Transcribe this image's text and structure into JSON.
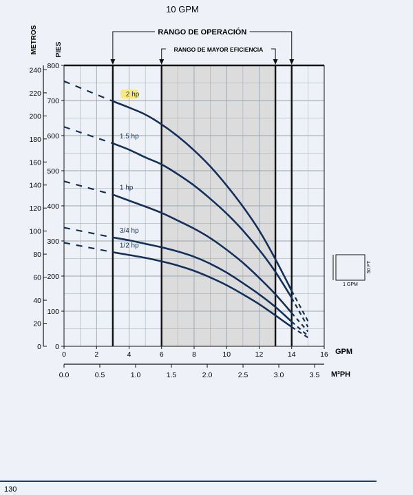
{
  "header": {
    "title": "10 GPM"
  },
  "footer": {
    "page_number": "130"
  },
  "chart_data": {
    "type": "line",
    "title": "10 GPM",
    "x_axis": {
      "label": "GPM",
      "range": [
        0,
        16
      ],
      "ticks": [
        "0",
        "2",
        "4",
        "6",
        "8",
        "10",
        "12",
        "14",
        "16"
      ]
    },
    "x2_axis": {
      "label": "M³PH",
      "ticks": [
        "0.0",
        "0.5",
        "1.0",
        "1.5",
        "2.0",
        "2.5",
        "3.0",
        "3.5"
      ]
    },
    "y_axis": {
      "label": "PIES",
      "range": [
        0,
        800
      ],
      "ticks": [
        "0",
        "100",
        "200",
        "300",
        "400",
        "500",
        "600",
        "700",
        "800"
      ]
    },
    "y2_axis": {
      "label": "METROS",
      "ticks": [
        "0",
        "20",
        "40",
        "60",
        "80",
        "100",
        "120",
        "140",
        "160",
        "180",
        "200",
        "220",
        "240"
      ]
    },
    "operating_range": {
      "label": "RANGO DE OPERACIÓN",
      "x": [
        3,
        14
      ]
    },
    "efficiency_range": {
      "label": "RANGO DE MAYOR EFICIENCIA",
      "x": [
        6,
        13
      ]
    },
    "series": [
      {
        "name": "2 hp",
        "highlight": true,
        "x": [
          3,
          4,
          5,
          6,
          7,
          8,
          9,
          10,
          11,
          12,
          13,
          14
        ],
        "y": [
          698,
          680,
          660,
          632,
          598,
          558,
          512,
          458,
          398,
          330,
          248,
          158
        ],
        "dash_left": [
          [
            0,
            755
          ],
          [
            3,
            698
          ]
        ],
        "dash_right": [
          [
            14,
            158
          ],
          [
            15,
            72
          ]
        ]
      },
      {
        "name": "1.5 hp",
        "x": [
          3,
          4,
          5,
          6,
          7,
          8,
          9,
          10,
          11,
          12,
          13,
          14
        ],
        "y": [
          578,
          560,
          538,
          518,
          490,
          458,
          420,
          378,
          330,
          275,
          212,
          138
        ],
        "dash_left": [
          [
            0,
            625
          ],
          [
            3,
            578
          ]
        ],
        "dash_right": [
          [
            14,
            138
          ],
          [
            15,
            55
          ]
        ]
      },
      {
        "name": "1 hp",
        "x": [
          3,
          4,
          5,
          6,
          7,
          8,
          9,
          10,
          11,
          12,
          13,
          14
        ],
        "y": [
          432,
          415,
          398,
          380,
          358,
          335,
          308,
          275,
          238,
          195,
          148,
          95
        ],
        "dash_left": [
          [
            0,
            470
          ],
          [
            3,
            432
          ]
        ],
        "dash_right": [
          [
            14,
            95
          ],
          [
            15,
            42
          ]
        ]
      },
      {
        "name": "3/4 hp",
        "x": [
          3,
          4,
          5,
          6,
          7,
          8,
          9,
          10,
          11,
          12,
          13,
          14
        ],
        "y": [
          310,
          302,
          292,
          282,
          270,
          255,
          235,
          210,
          180,
          148,
          112,
          70
        ],
        "dash_left": [
          [
            0,
            338
          ],
          [
            3,
            310
          ]
        ],
        "dash_right": [
          [
            14,
            70
          ],
          [
            15,
            30
          ]
        ]
      },
      {
        "name": "1/2 hp",
        "x": [
          3,
          4,
          5,
          6,
          7,
          8,
          9,
          10,
          11,
          12,
          13,
          14
        ],
        "y": [
          268,
          260,
          252,
          242,
          230,
          215,
          196,
          174,
          148,
          120,
          88,
          55
        ],
        "dash_left": [
          [
            0,
            295
          ],
          [
            3,
            268
          ]
        ],
        "dash_right": [
          [
            14,
            55
          ],
          [
            15,
            25
          ]
        ]
      }
    ],
    "scale_key": {
      "width_label": "1 GPM",
      "height_label": "50 FT"
    },
    "colors": {
      "curve": "#12305a",
      "highlight": "#fde882",
      "efficiency_band": "#dcdcdc",
      "background": "#eef2f8",
      "grid": "#9aa3ad"
    }
  }
}
